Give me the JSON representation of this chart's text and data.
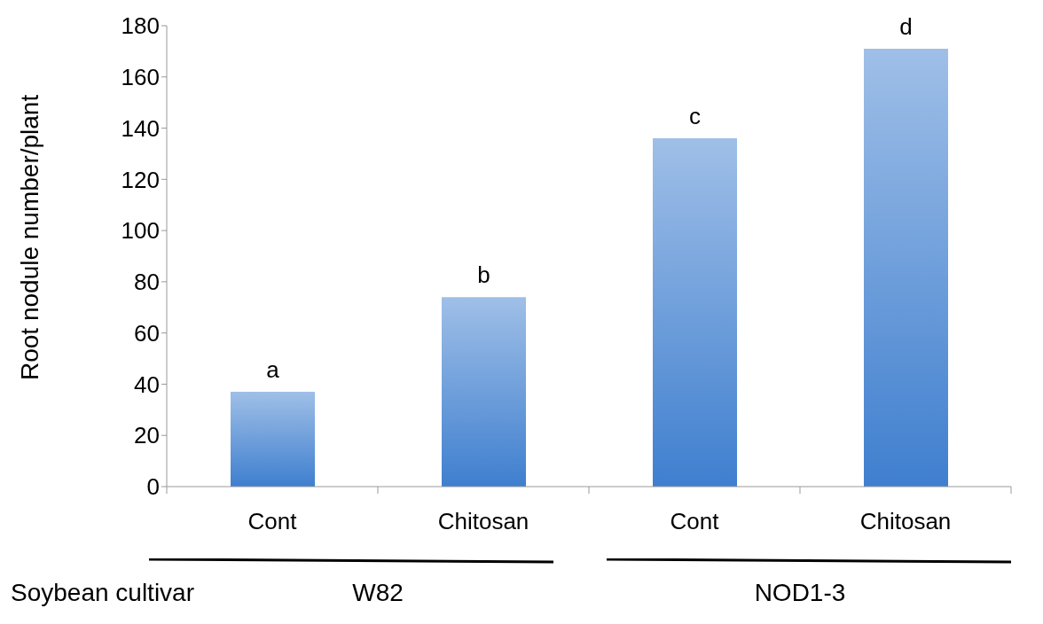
{
  "chart_data": {
    "type": "bar",
    "ylabel": "Root nodule number/plant",
    "xlabel": "Soybean cultivar",
    "categories": [
      "Cont",
      "Chitosan",
      "Cont",
      "Chitosan"
    ],
    "values": [
      37,
      74,
      136,
      171
    ],
    "color": "#3f7fcf",
    "ylim": [
      0,
      180
    ],
    "yticks": [
      0,
      20,
      40,
      60,
      80,
      100,
      120,
      140,
      160,
      180
    ],
    "grid": false,
    "annotations": [
      "a",
      "b",
      "c",
      "d",
      "W82",
      "NOD1-3"
    ]
  }
}
